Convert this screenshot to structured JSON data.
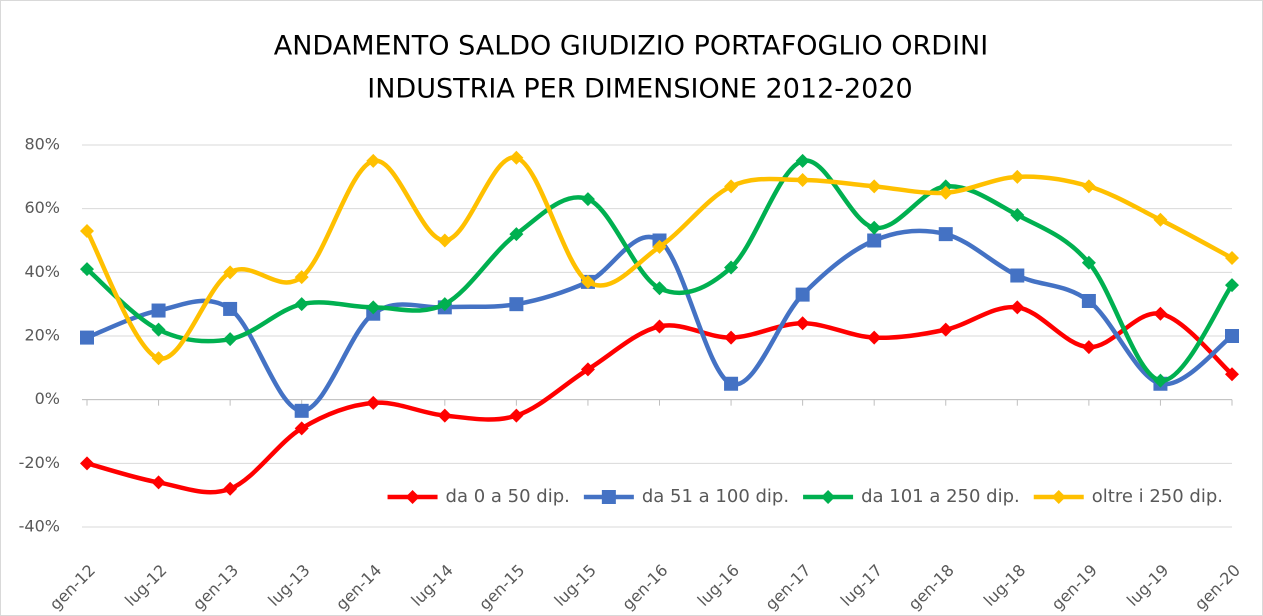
{
  "chart_data": {
    "type": "line",
    "title": [
      "ANDAMENTO  SALDO  GIUDIZIO  PORTAFOGLIO  ORDINI",
      "INDUSTRIA PER DIMENSIONE  2012-2020"
    ],
    "categories": [
      "gen-12",
      "lug-12",
      "gen-13",
      "lug-13",
      "gen-14",
      "lug-14",
      "gen-15",
      "lug-15",
      "gen-16",
      "lug-16",
      "gen-17",
      "lug-17",
      "gen-18",
      "lug-18",
      "gen-19",
      "lug-19",
      "gen-20"
    ],
    "series": [
      {
        "name": "da 0 a 50 dip.",
        "color": "#ff0000",
        "marker": "diamond",
        "values": [
          -20,
          -26,
          -28,
          -9,
          -1,
          -5,
          -5,
          9.5,
          23,
          19.5,
          24,
          19.5,
          22,
          29,
          16.5,
          27,
          8
        ]
      },
      {
        "name": "da 51 a 100 dip.",
        "color": "#4472c4",
        "marker": "square",
        "values": [
          19.5,
          28,
          28.5,
          -3.5,
          27,
          29,
          30,
          37,
          50,
          5,
          33,
          50,
          52,
          39,
          31,
          5,
          20
        ]
      },
      {
        "name": "da 101 a 250 dip.",
        "color": "#00b050",
        "marker": "diamond",
        "values": [
          41,
          22,
          19,
          30,
          29,
          30,
          52,
          63,
          35,
          41.5,
          75,
          54,
          67,
          58,
          43,
          6,
          36
        ]
      },
      {
        "name": "oltre i 250 dip.",
        "color": "#ffc000",
        "marker": "diamond",
        "values": [
          53,
          13,
          40,
          38.5,
          75,
          50,
          76,
          37,
          48,
          67,
          69,
          67,
          65,
          70,
          67,
          56.5,
          44.5
        ]
      }
    ],
    "ylim": [
      -40,
      80
    ],
    "yticks": [
      {
        "value": -40,
        "label": "-40%"
      },
      {
        "value": -20,
        "label": "-20%"
      },
      {
        "value": 0,
        "label": "0%"
      },
      {
        "value": 20,
        "label": "20%"
      },
      {
        "value": 40,
        "label": "40%"
      },
      {
        "value": 60,
        "label": "60%"
      },
      {
        "value": 80,
        "label": "80%"
      }
    ],
    "grid": true,
    "smooth": true,
    "legend": "bottom-right"
  }
}
